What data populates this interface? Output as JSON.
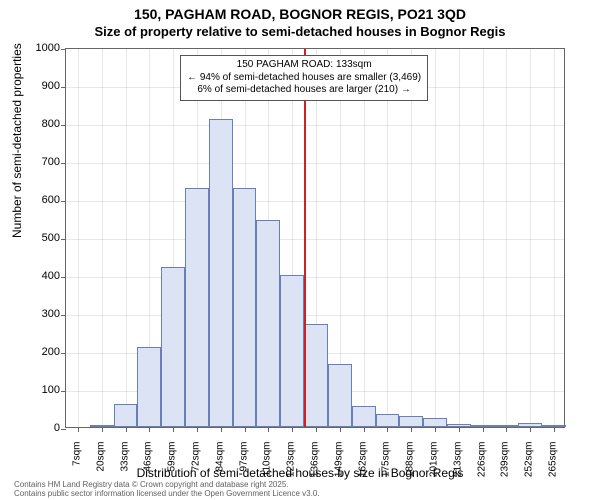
{
  "title": {
    "main": "150, PAGHAM ROAD, BOGNOR REGIS, PO21 3QD",
    "sub": "Size of property relative to semi-detached houses in Bognor Regis"
  },
  "chart": {
    "type": "histogram",
    "ylabel": "Number of semi-detached properties",
    "xlabel": "Distribution of semi-detached houses by size in Bognor Regis",
    "ylim": [
      0,
      1000
    ],
    "ytick_step": 100,
    "bar_fill": "#dbe3f5",
    "bar_stroke": "#6a7fb8",
    "background_color": "#ffffff",
    "grid_color": "#666666",
    "marker_color": "#d02020",
    "axis_fontsize": 11,
    "label_fontsize": 12,
    "title_fontsize": 14,
    "x_categories": [
      "7sqm",
      "20sqm",
      "33sqm",
      "46sqm",
      "59sqm",
      "72sqm",
      "84sqm",
      "97sqm",
      "110sqm",
      "123sqm",
      "136sqm",
      "149sqm",
      "162sqm",
      "175sqm",
      "188sqm",
      "201sqm",
      "213sqm",
      "226sqm",
      "239sqm",
      "252sqm",
      "265sqm"
    ],
    "values": [
      0,
      2,
      60,
      210,
      420,
      630,
      810,
      630,
      545,
      400,
      270,
      165,
      55,
      35,
      30,
      25,
      8,
      3,
      5,
      10,
      3
    ],
    "marker_bin_index": 10,
    "annotation": {
      "line1": "150 PAGHAM ROAD: 133sqm",
      "line2": "← 94% of semi-detached houses are smaller (3,469)",
      "line3": "6% of semi-detached houses are larger (210) →"
    }
  },
  "footer": {
    "line1": "Contains HM Land Registry data © Crown copyright and database right 2025.",
    "line2": "Contains public sector information licensed under the Open Government Licence v3.0."
  }
}
